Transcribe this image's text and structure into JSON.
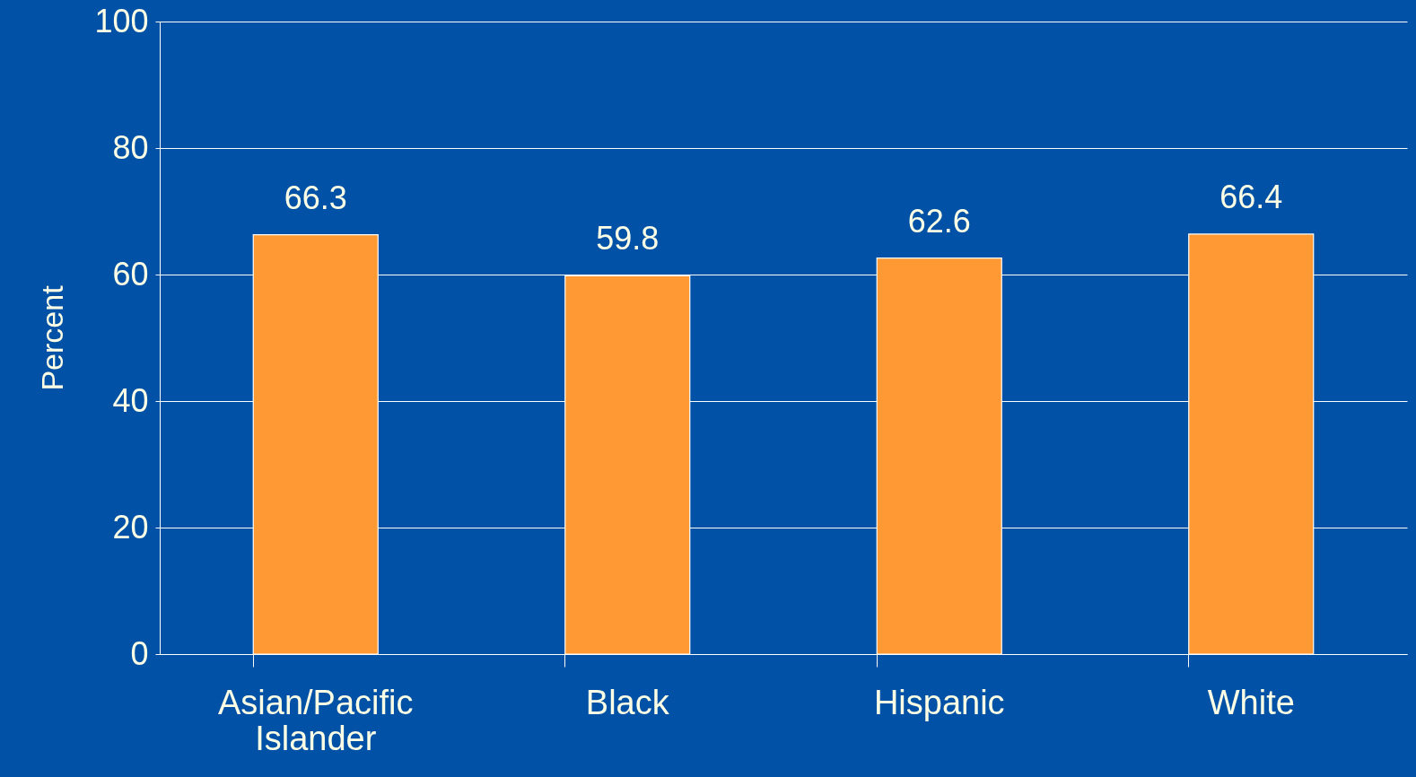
{
  "chart_data": {
    "type": "bar",
    "ylabel": "Percent",
    "categories": [
      "Asian/Pacific Islander",
      "Black",
      "Hispanic",
      "White"
    ],
    "values": [
      66.3,
      59.8,
      62.6,
      66.4
    ],
    "color": "#ff9933",
    "ylim": [
      0,
      100
    ],
    "yticks": [
      0,
      20,
      40,
      60,
      80,
      100
    ],
    "grid": "y",
    "data_labels": true
  }
}
